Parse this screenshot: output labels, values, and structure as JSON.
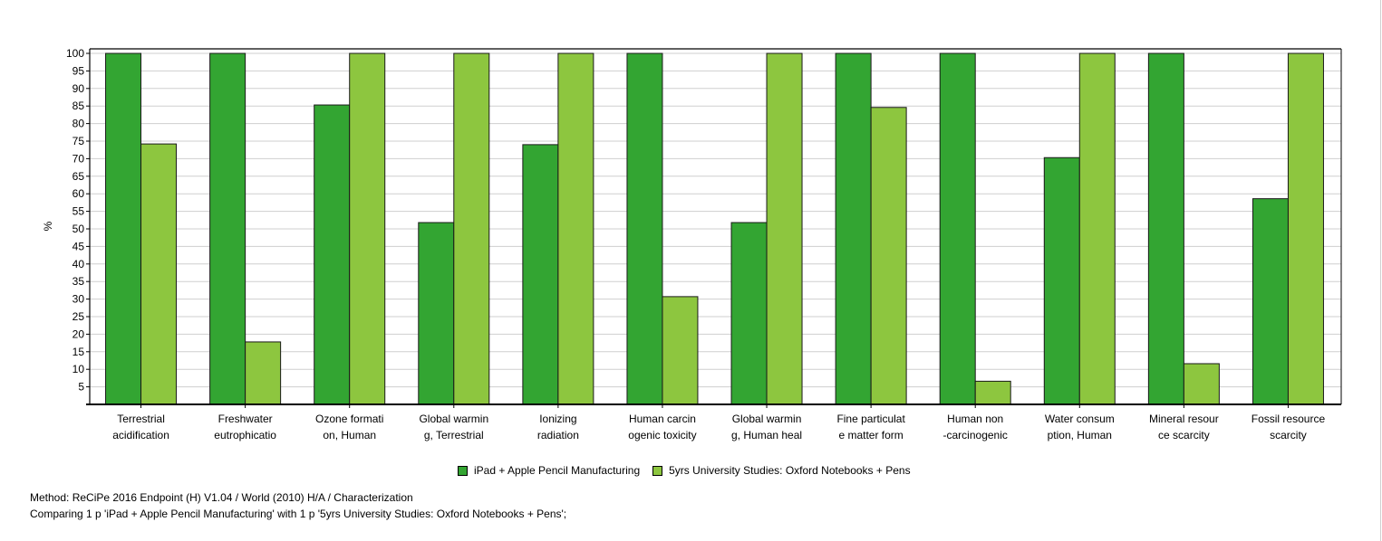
{
  "chart_data": {
    "type": "bar",
    "ylabel": "%",
    "ylim": [
      0,
      100
    ],
    "yticks": [
      5,
      10,
      15,
      20,
      25,
      30,
      35,
      40,
      45,
      50,
      55,
      60,
      65,
      70,
      75,
      80,
      85,
      90,
      95,
      100
    ],
    "grid": true,
    "legend_position": "bottom",
    "categories": [
      [
        "Terrestrial",
        "acidification"
      ],
      [
        "Freshwater",
        "eutrophicatio"
      ],
      [
        "Ozone formati",
        "on, Human"
      ],
      [
        "Global warmin",
        "g, Terrestrial"
      ],
      [
        "Ionizing",
        "radiation"
      ],
      [
        "Human carcin",
        "ogenic toxicity"
      ],
      [
        "Global warmin",
        "g, Human heal"
      ],
      [
        "Fine particulat",
        "e matter form"
      ],
      [
        "Human non",
        "-carcinogenic"
      ],
      [
        "Water consum",
        "ption, Human"
      ],
      [
        "Mineral resour",
        "ce scarcity"
      ],
      [
        "Fossil resource",
        "scarcity"
      ]
    ],
    "series": [
      {
        "name": "iPad + Apple Pencil Manufacturing",
        "color": "#33a532",
        "values": [
          100,
          100,
          85.3,
          51.8,
          74,
          100,
          51.8,
          100,
          100,
          70.3,
          100,
          58.6
        ]
      },
      {
        "name": "5yrs University Studies: Oxford Notebooks + Pens",
        "color": "#8dc63f",
        "values": [
          74.2,
          17.8,
          100,
          100,
          100,
          30.7,
          100,
          84.6,
          6.6,
          100,
          11.6,
          100
        ]
      }
    ]
  },
  "footer": {
    "method": "Method: ReCiPe 2016 Endpoint (H) V1.04 / World (2010) H/A / Characterization",
    "comparing": "Comparing 1 p 'iPad + Apple Pencil Manufacturing' with 1 p '5yrs University Studies: Oxford Notebooks + Pens';"
  }
}
